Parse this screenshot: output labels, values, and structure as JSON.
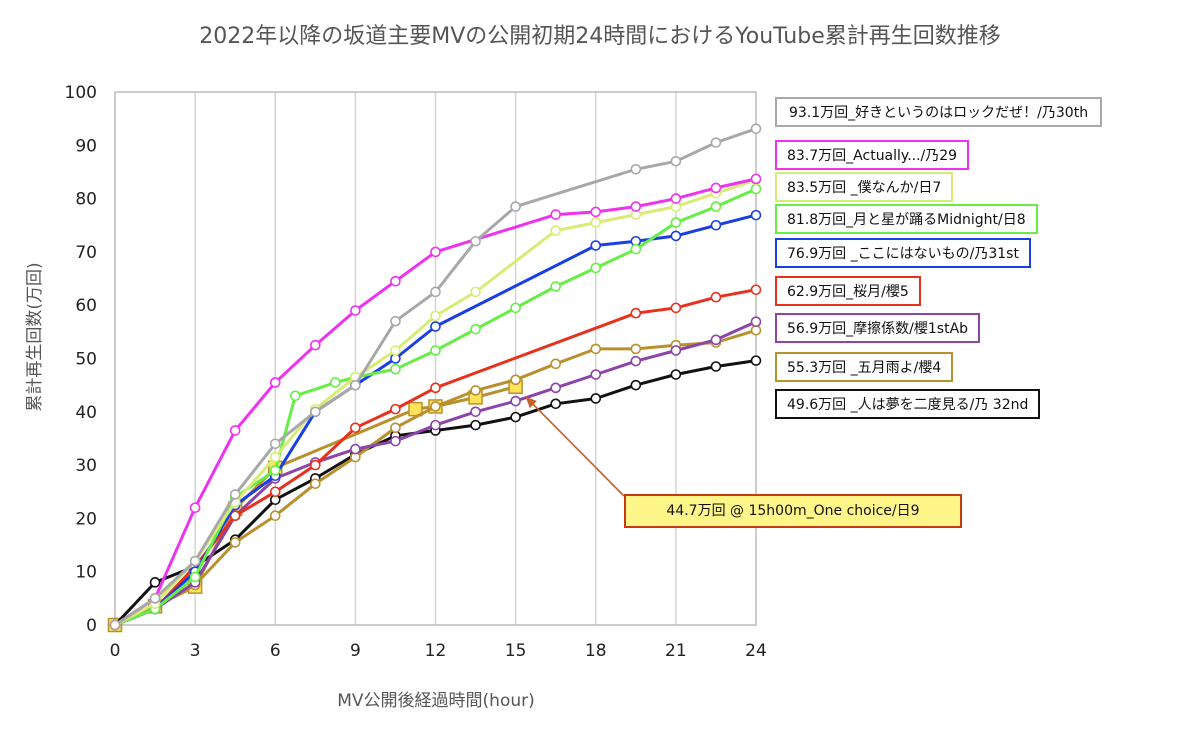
{
  "chart_data": {
    "type": "line",
    "title": "2022年以降の坂道主要MVの公開初期24時間におけるYouTube累計再生回数推移",
    "xlabel": "MV公開後経過時間(hour)",
    "ylabel": "累計再生回数(万回)",
    "xlim": [
      0,
      24
    ],
    "ylim": [
      0,
      100
    ],
    "xticks": [
      "0",
      "3",
      "6",
      "9",
      "12",
      "15",
      "18",
      "21",
      "24"
    ],
    "yticks": [
      "0",
      "10",
      "20",
      "30",
      "40",
      "50",
      "60",
      "70",
      "80",
      "90",
      "100"
    ],
    "grid": "vertical",
    "legend_position": "right",
    "series": [
      {
        "name": "93.1万回_好きというのはロックだぜ！/乃30th",
        "color": "#a8a8a8",
        "x": [
          0,
          1.5,
          3,
          4.5,
          6,
          7.5,
          9,
          10.5,
          12,
          13.5,
          15,
          19.5,
          21,
          22.5,
          24
        ],
        "y": [
          0,
          5,
          12,
          24.5,
          34,
          40,
          45,
          57,
          62.5,
          72,
          78.5,
          85.5,
          87,
          90.5,
          93.1
        ]
      },
      {
        "name": "83.7万回_Actually.../乃29",
        "color": "#ee33ee",
        "x": [
          0,
          1.5,
          3,
          4.5,
          6,
          7.5,
          9,
          10.5,
          12,
          16.5,
          18,
          19.5,
          21,
          22.5,
          24
        ],
        "y": [
          0,
          5,
          22,
          36.5,
          45.5,
          52.5,
          59,
          64.5,
          70,
          77,
          77.5,
          78.5,
          80,
          82,
          83.7
        ]
      },
      {
        "name": "83.5万回 _僕なんか/日7",
        "color": "#d8ec75",
        "x": [
          0,
          1.5,
          3,
          4.5,
          6,
          7.5,
          9,
          10.5,
          12,
          13.5,
          16.5,
          18,
          19.5,
          21,
          22.5,
          24
        ],
        "y": [
          0,
          4,
          12,
          23,
          31.5,
          40.5,
          46.5,
          51.5,
          58,
          62.5,
          74,
          75.5,
          77,
          78.5,
          81,
          83.5
        ]
      },
      {
        "name": "81.8万回_月と星が踊るMidnight/日8",
        "color": "#66ee44",
        "x": [
          0,
          1.5,
          3,
          4.5,
          6,
          6.75,
          8.25,
          9,
          10.5,
          12,
          13.5,
          15,
          16.5,
          18,
          19.5,
          21,
          22.5,
          24
        ],
        "y": [
          0,
          3,
          9,
          24,
          29,
          43,
          45.5,
          46.5,
          48,
          51.5,
          55.5,
          59.5,
          63.5,
          67,
          70.5,
          75.5,
          78.5,
          81.8
        ]
      },
      {
        "name": "76.9万回 _ここにはないもの/乃31st",
        "color": "#1a3ee6",
        "x": [
          0,
          1.5,
          3,
          4.5,
          6,
          7.5,
          9,
          10.5,
          12,
          18,
          19.5,
          21,
          22.5,
          24
        ],
        "y": [
          0,
          3,
          10,
          22.5,
          28,
          40,
          45,
          50,
          56,
          71.2,
          72,
          73,
          75,
          76.9
        ]
      },
      {
        "name": "62.9万回_桜月/櫻5",
        "color": "#e8311c",
        "x": [
          0,
          1.5,
          3,
          4.5,
          6,
          7.5,
          9,
          10.5,
          12,
          19.5,
          21,
          22.5,
          24
        ],
        "y": [
          0,
          3,
          11,
          20.5,
          25,
          30,
          37,
          40.5,
          44.5,
          58.5,
          59.5,
          61.5,
          62.9
        ]
      },
      {
        "name": "56.9万回_摩擦係数/櫻1stAb",
        "color": "#8c44a8",
        "x": [
          0,
          1.5,
          3,
          4.5,
          6,
          7.5,
          9,
          10.5,
          12,
          13.5,
          15,
          16.5,
          18,
          19.5,
          21,
          22.5,
          24
        ],
        "y": [
          0,
          3,
          8,
          20.5,
          27.5,
          30.5,
          33,
          34.5,
          37.5,
          40,
          42,
          44.5,
          47,
          49.5,
          51.5,
          53.5,
          56.9
        ]
      },
      {
        "name": "55.3万回 _五月雨よ/櫻4",
        "color": "#b8902e",
        "x": [
          0,
          1.5,
          3,
          4.5,
          6,
          7.5,
          9,
          10.5,
          12,
          13.5,
          15,
          16.5,
          18,
          19.5,
          21,
          22.5,
          24
        ],
        "y": [
          0,
          3.5,
          7.5,
          15.5,
          20.5,
          26.5,
          31.5,
          37,
          41,
          44,
          46,
          49,
          51.8,
          51.8,
          52.5,
          53,
          55.3
        ]
      },
      {
        "name": "49.6万回 _人は夢を二度見る/乃 32nd",
        "color": "#111111",
        "x": [
          0,
          1.5,
          3,
          4.5,
          6,
          7.5,
          9,
          10.5,
          12,
          13.5,
          15,
          16.5,
          18,
          19.5,
          21,
          22.5,
          24
        ],
        "y": [
          0,
          8,
          11,
          16,
          23.5,
          27.5,
          32,
          35.5,
          36.5,
          37.5,
          39,
          41.5,
          42.5,
          45,
          47,
          48.5,
          49.6
        ]
      },
      {
        "name": "One choice",
        "color": "#b8902e",
        "marker": "square",
        "x": [
          0,
          1.5,
          3,
          4.5,
          6,
          11.25,
          12,
          13.5,
          15
        ],
        "y": [
          0,
          3.5,
          7.2,
          21.8,
          29.5,
          40.5,
          41,
          42.7,
          44.7
        ]
      }
    ],
    "annotations": [
      {
        "text": "44.7万回 @ 15h00m_One choice/日9",
        "x": 15,
        "y": 44.7
      }
    ]
  }
}
